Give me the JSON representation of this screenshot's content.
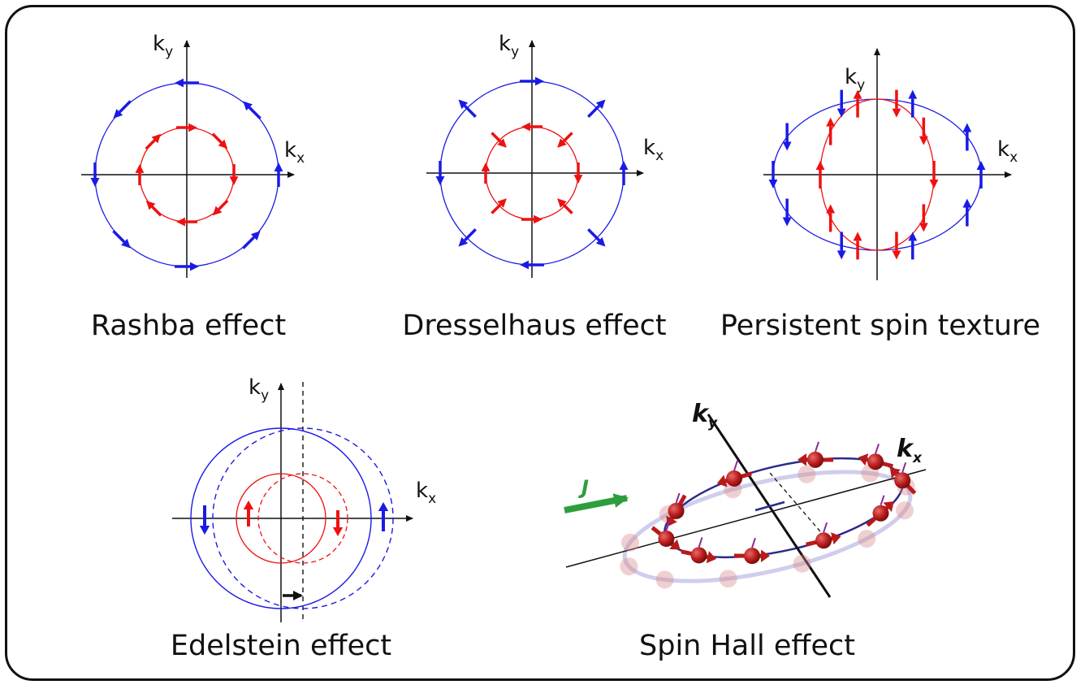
{
  "colors": {
    "outer": "#1a1ae6",
    "inner": "#ee1111",
    "axis": "#111111",
    "current": "#2e9e3c",
    "spin": "#b81a1a",
    "orbit": "#2c2a8a"
  },
  "panels": {
    "rashba": {
      "caption": "Rashba effect",
      "ky": {
        "main": "k",
        "sub": "y"
      },
      "kx": {
        "main": "k",
        "sub": "x"
      }
    },
    "dresselhaus": {
      "caption": "Dresselhaus effect",
      "ky": {
        "main": "k",
        "sub": "y"
      },
      "kx": {
        "main": "k",
        "sub": "x"
      }
    },
    "persistent": {
      "caption": "Persistent spin texture",
      "ky": {
        "main": "k",
        "sub": "y"
      },
      "kx": {
        "main": "k",
        "sub": "x"
      }
    },
    "edelstein": {
      "caption": "Edelstein effect",
      "ky": {
        "main": "k",
        "sub": "y"
      },
      "kx": {
        "main": "k",
        "sub": "x"
      }
    },
    "spin_hall": {
      "caption": "Spin Hall effect",
      "ky": {
        "main": "k",
        "sub": "y"
      },
      "kx": {
        "main": "k",
        "sub": "x"
      },
      "current_label": "J"
    }
  }
}
